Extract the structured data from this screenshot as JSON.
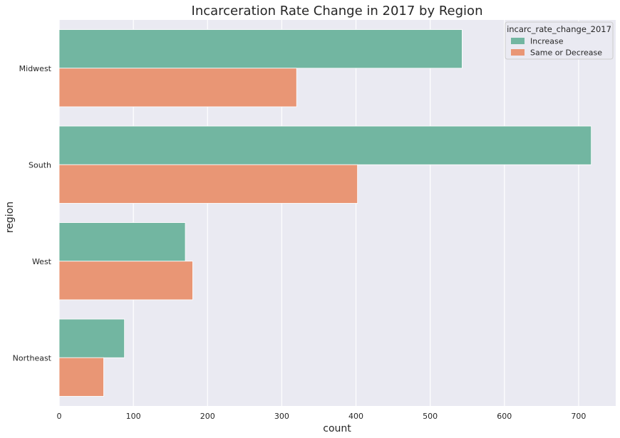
{
  "chart_data": {
    "type": "bar",
    "orientation": "horizontal",
    "title": "Incarceration Rate Change in 2017 by Region",
    "xlabel": "count",
    "ylabel": "region",
    "categories": [
      "Midwest",
      "South",
      "West",
      "Northeast"
    ],
    "series": [
      {
        "name": "Increase",
        "color": "#72b6a1",
        "values": [
          543,
          717,
          170,
          88
        ]
      },
      {
        "name": "Same or Decrease",
        "color": "#e99675",
        "values": [
          320,
          402,
          180,
          60
        ]
      }
    ],
    "xlim": [
      0,
      750
    ],
    "xticks": [
      0,
      100,
      200,
      300,
      400,
      500,
      600,
      700
    ],
    "legend": {
      "title": "incarc_rate_change_2017",
      "position": "top-right"
    },
    "grid": true,
    "background": "#eaeaf2"
  }
}
